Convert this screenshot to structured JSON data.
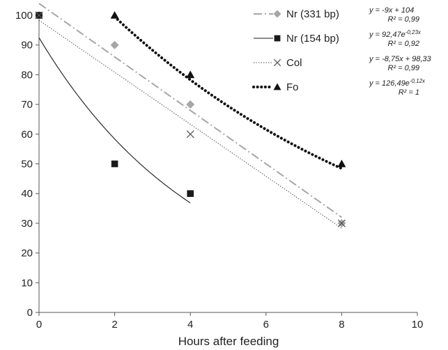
{
  "chart_data": {
    "type": "scatter",
    "title": "",
    "xlabel": "Hours after feeding",
    "ylabel": "",
    "xlim": [
      0,
      10
    ],
    "ylim": [
      0,
      100
    ],
    "x_ticks": [
      "0",
      "2",
      "4",
      "6",
      "8",
      "10"
    ],
    "y_ticks": [
      "0",
      "10",
      "20",
      "30",
      "40",
      "50",
      "60",
      "70",
      "80",
      "90",
      "100"
    ],
    "grid": false,
    "legend_position": "top-right",
    "series": [
      {
        "name": "Nr (331 bp)",
        "marker": "diamond",
        "color": "#a6a6a6",
        "line_style": "dash-dot",
        "x": [
          0,
          2,
          4,
          8
        ],
        "y": [
          100,
          90,
          70,
          30
        ],
        "trend": {
          "type": "linear",
          "a": -9,
          "b": 104,
          "x_range": [
            0,
            8
          ]
        },
        "equation": {
          "main": "y = -9x + 104",
          "r2": "R² = 0,99"
        }
      },
      {
        "name": "Nr (154 bp)",
        "marker": "square",
        "color": "#1a1a1a",
        "line_style": "solid",
        "x": [
          0,
          2,
          4
        ],
        "y": [
          100,
          50,
          40
        ],
        "trend": {
          "type": "exponential",
          "a": 92.47,
          "b": -0.23,
          "x_range": [
            0,
            4
          ]
        },
        "equation": {
          "main": "y = 92,47e",
          "exponent": "-0,23x",
          "r2": "R² = 0,92"
        }
      },
      {
        "name": "Col",
        "marker": "x",
        "color": "#555555",
        "line_style": "dotted-thin",
        "x": [
          0,
          4,
          8
        ],
        "y": [
          100,
          60,
          30
        ],
        "trend": {
          "type": "linear",
          "a": -8.75,
          "b": 98.33,
          "x_range": [
            0,
            8
          ]
        },
        "equation": {
          "main": "y = -8,75x + 98,33",
          "r2": "R² = 0,99"
        }
      },
      {
        "name": "Fo",
        "marker": "triangle",
        "color": "#111111",
        "line_style": "dotted-thick",
        "x": [
          2,
          4,
          8
        ],
        "y": [
          100,
          80,
          50
        ],
        "trend": {
          "type": "exponential",
          "a": 126.49,
          "b": -0.12,
          "x_range": [
            2,
            8
          ]
        },
        "equation": {
          "main": "y = 126,49e",
          "exponent": "-0,12x",
          "r2": "R² = 1"
        }
      }
    ]
  }
}
